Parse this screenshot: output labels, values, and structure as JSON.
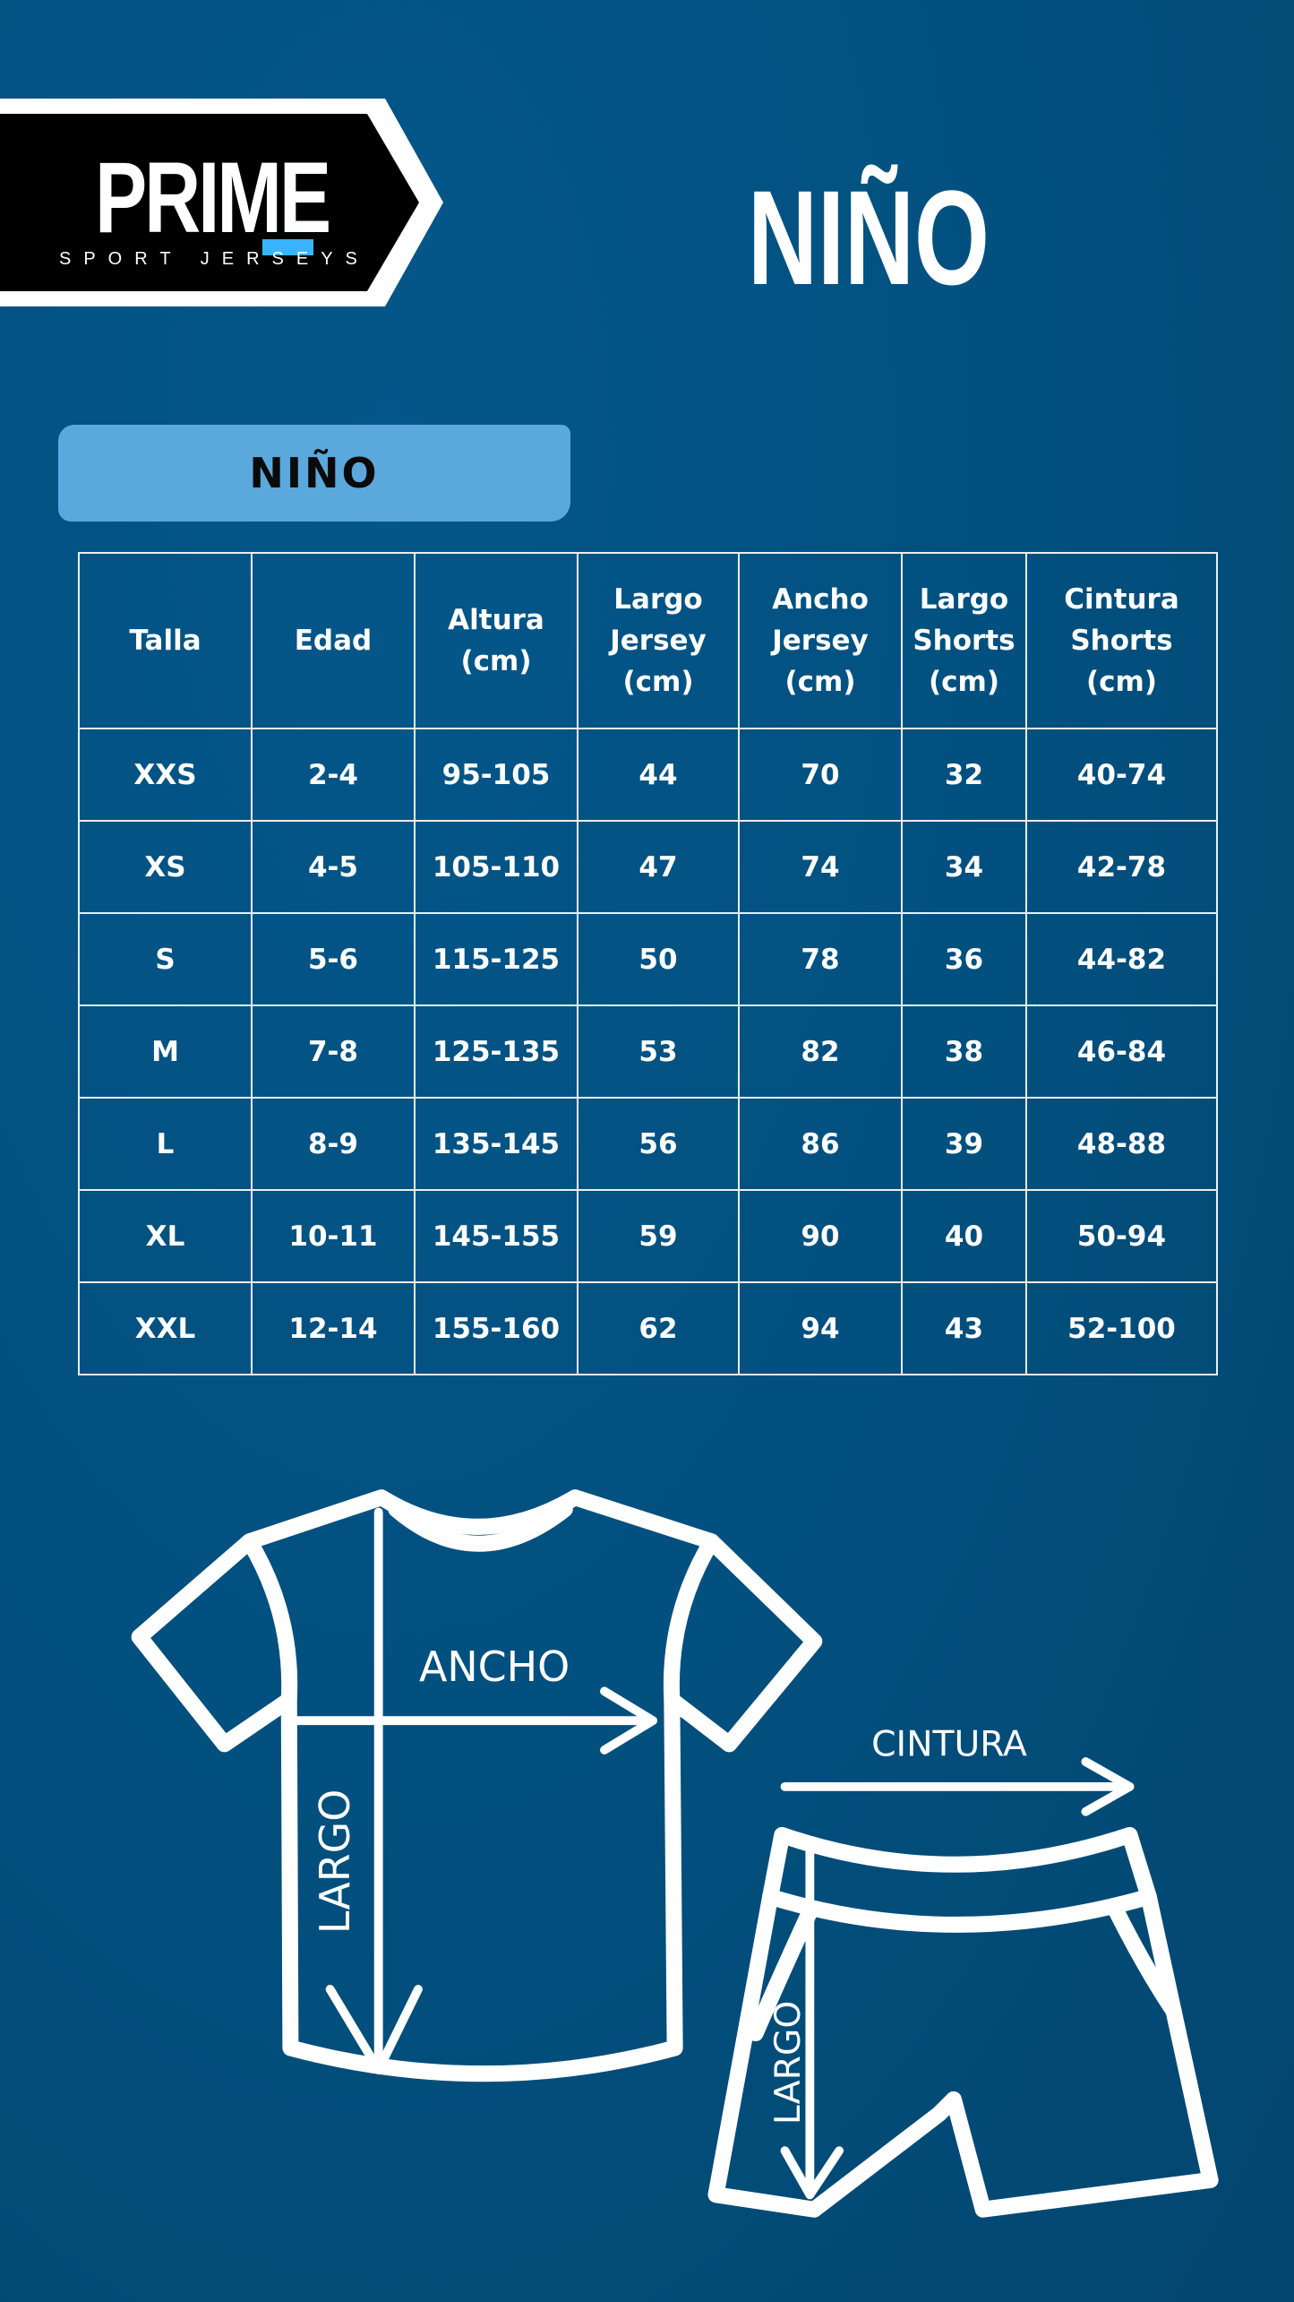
{
  "logo": {
    "name": "PRIME",
    "tagline": "SPORT JERSEYS",
    "accent": "#3ab4ff"
  },
  "title": "NIÑO",
  "section_label": "NIÑO",
  "table": {
    "headers": [
      [
        "Talla"
      ],
      [
        "Edad"
      ],
      [
        "Altura",
        "(cm)"
      ],
      [
        "Largo",
        "Jersey",
        "(cm)"
      ],
      [
        "Ancho",
        "Jersey",
        "(cm)"
      ],
      [
        "Largo",
        "Shorts",
        "(cm)"
      ],
      [
        "Cintura",
        "Shorts",
        "(cm)"
      ]
    ],
    "rows": [
      [
        "XXS",
        "2-4",
        "95-105",
        "44",
        "70",
        "32",
        "40-74"
      ],
      [
        "XS",
        "4-5",
        "105-110",
        "47",
        "74",
        "34",
        "42-78"
      ],
      [
        "S",
        "5-6",
        "115-125",
        "50",
        "78",
        "36",
        "44-82"
      ],
      [
        "M",
        "7-8",
        "125-135",
        "53",
        "82",
        "38",
        "46-84"
      ],
      [
        "L",
        "8-9",
        "135-145",
        "56",
        "86",
        "39",
        "48-88"
      ],
      [
        "XL",
        "10-11",
        "145-155",
        "59",
        "90",
        "40",
        "50-94"
      ],
      [
        "XXL",
        "12-14",
        "155-160",
        "62",
        "94",
        "43",
        "52-100"
      ]
    ]
  },
  "diagram": {
    "jersey_width": "ANCHO",
    "jersey_length": "LARGO",
    "shorts_waist": "CINTURA",
    "shorts_length": "LARGO"
  },
  "colors": {
    "background": "#02507f",
    "pill": "#5aa8dc",
    "logo_bg": "#000000"
  }
}
